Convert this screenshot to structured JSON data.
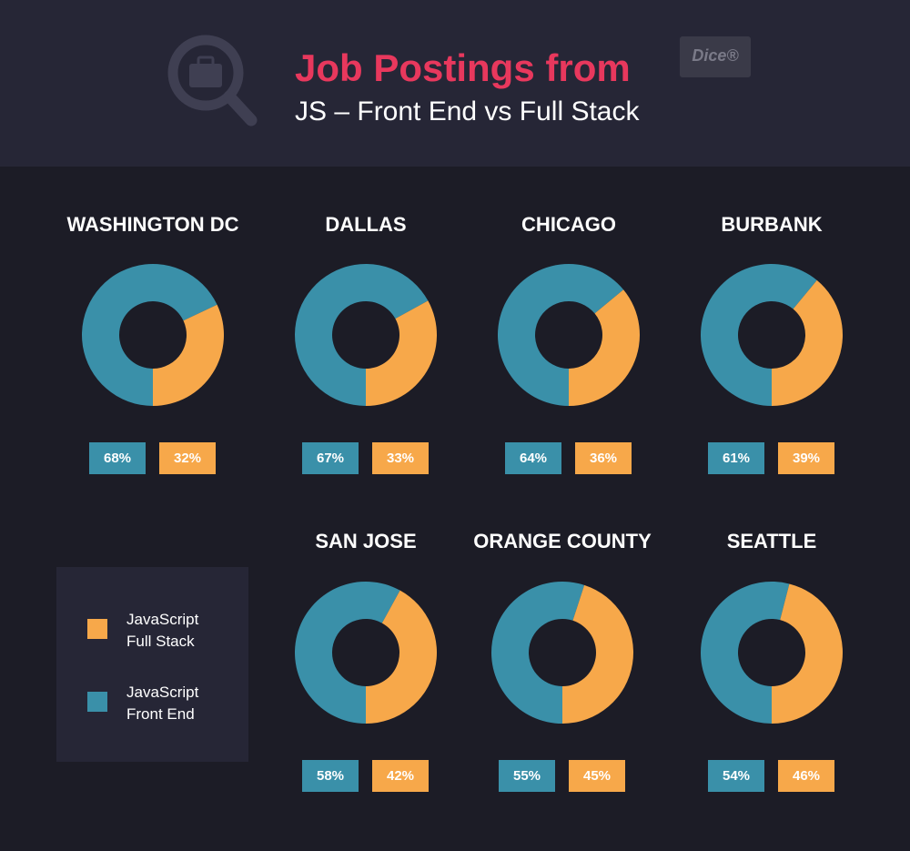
{
  "header": {
    "title": "Job Postings from",
    "subtitle": "JS – Front End vs Full Stack",
    "logo": "Dice®"
  },
  "legend": [
    {
      "name": "JavaScript Full Stack",
      "color": "#f7a84a"
    },
    {
      "name": "JavaScript Front End",
      "color": "#3a90a9"
    }
  ],
  "chart_data": [
    {
      "type": "pie",
      "title": "WASHINGTON DC",
      "values": [
        68,
        32
      ],
      "value_labels": [
        "68%",
        "32%"
      ],
      "colors": [
        "#3a90a9",
        "#f7a84a"
      ]
    },
    {
      "type": "pie",
      "title": "DALLAS",
      "values": [
        67,
        33
      ],
      "value_labels": [
        "67%",
        "33%"
      ],
      "colors": [
        "#3a90a9",
        "#f7a84a"
      ]
    },
    {
      "type": "pie",
      "title": "CHICAGO",
      "values": [
        64,
        36
      ],
      "value_labels": [
        "64%",
        "36%"
      ],
      "colors": [
        "#3a90a9",
        "#f7a84a"
      ]
    },
    {
      "type": "pie",
      "title": "BURBANK",
      "values": [
        61,
        39
      ],
      "value_labels": [
        "61%",
        "39%"
      ],
      "colors": [
        "#3a90a9",
        "#f7a84a"
      ]
    },
    {
      "type": "pie",
      "title": "SAN JOSE",
      "values": [
        58,
        42
      ],
      "value_labels": [
        "58%",
        "42%"
      ],
      "colors": [
        "#3a90a9",
        "#f7a84a"
      ]
    },
    {
      "type": "pie",
      "title": "ORANGE COUNTY",
      "values": [
        55,
        45
      ],
      "value_labels": [
        "55%",
        "45%"
      ],
      "colors": [
        "#3a90a9",
        "#f7a84a"
      ]
    },
    {
      "type": "pie",
      "title": "SEATTLE",
      "values": [
        54,
        46
      ],
      "value_labels": [
        "54%",
        "46%"
      ],
      "colors": [
        "#3a90a9",
        "#f7a84a"
      ]
    }
  ]
}
